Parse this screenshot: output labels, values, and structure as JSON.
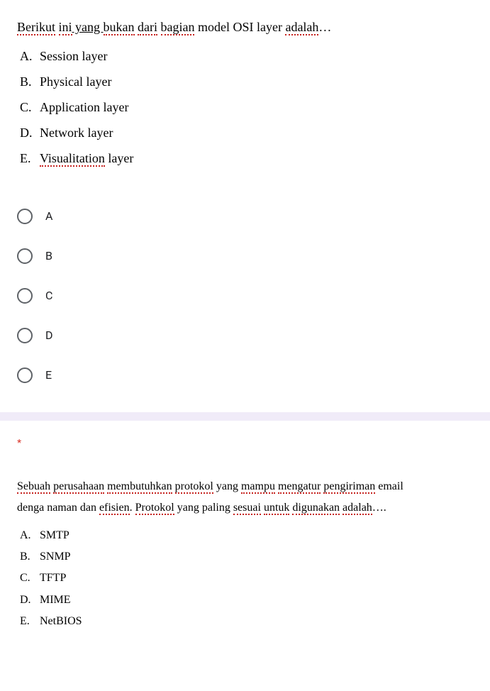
{
  "question1": {
    "prompt_parts": [
      {
        "text": "Berikut",
        "err": true
      },
      {
        "text": " ",
        "err": false
      },
      {
        "text": "ini",
        "err": true
      },
      {
        "text": " yang  ",
        "err": false,
        "underline": true
      },
      {
        "text": "bukan",
        "err": true
      },
      {
        "text": " ",
        "err": false
      },
      {
        "text": "dari",
        "err": true
      },
      {
        "text": " ",
        "err": false
      },
      {
        "text": "bagian",
        "err": true
      },
      {
        "text": " model OSI layer ",
        "err": false
      },
      {
        "text": "adalah",
        "err": true
      },
      {
        "text": "…",
        "err": false
      }
    ],
    "options": [
      {
        "letter": "A.",
        "text": "Session layer",
        "err_words": []
      },
      {
        "letter": "B.",
        "text": "Physical layer",
        "err_words": []
      },
      {
        "letter": "C.",
        "text": "Application layer",
        "err_words": []
      },
      {
        "letter": "D.",
        "text": "Network layer",
        "err_words": []
      },
      {
        "letter": "E.",
        "text_parts": [
          {
            "t": "Visualitation",
            "e": true
          },
          {
            "t": " layer",
            "e": false
          }
        ]
      }
    ],
    "radios": [
      "A",
      "B",
      "C",
      "D",
      "E"
    ]
  },
  "required_marker": "*",
  "question2": {
    "prompt_line1_parts": [
      {
        "text": "Sebuah",
        "err": true
      },
      {
        "text": " ",
        "err": false
      },
      {
        "text": "perusahaan",
        "err": true
      },
      {
        "text": " ",
        "err": false
      },
      {
        "text": "membutuhkan",
        "err": true
      },
      {
        "text": " ",
        "err": false
      },
      {
        "text": "protokol",
        "err": true
      },
      {
        "text": " yang ",
        "err": false
      },
      {
        "text": "mampu",
        "err": true
      },
      {
        "text": " ",
        "err": false
      },
      {
        "text": "mengatur",
        "err": true
      },
      {
        "text": " ",
        "err": false
      },
      {
        "text": "pengiriman",
        "err": true
      },
      {
        "text": " email",
        "err": false
      }
    ],
    "prompt_line2_parts": [
      {
        "text": "denga naman dan ",
        "err": false
      },
      {
        "text": "efisien",
        "err": true
      },
      {
        "text": ". ",
        "err": false
      },
      {
        "text": "Protokol",
        "err": true
      },
      {
        "text": " yang paling ",
        "err": false
      },
      {
        "text": "sesuai",
        "err": true
      },
      {
        "text": " ",
        "err": false
      },
      {
        "text": "untuk",
        "err": true
      },
      {
        "text": " ",
        "err": false
      },
      {
        "text": "digunakan",
        "err": true
      },
      {
        "text": " ",
        "err": false
      },
      {
        "text": "adalah",
        "err": true
      },
      {
        "text": "….",
        "err": false
      }
    ],
    "options": [
      {
        "letter": "A.",
        "text": "SMTP"
      },
      {
        "letter": "B.",
        "text": "SNMP"
      },
      {
        "letter": "C.",
        "text": "TFTP"
      },
      {
        "letter": "D.",
        "text": "MIME"
      },
      {
        "letter": "E.",
        "text": "NetBIOS"
      }
    ]
  }
}
